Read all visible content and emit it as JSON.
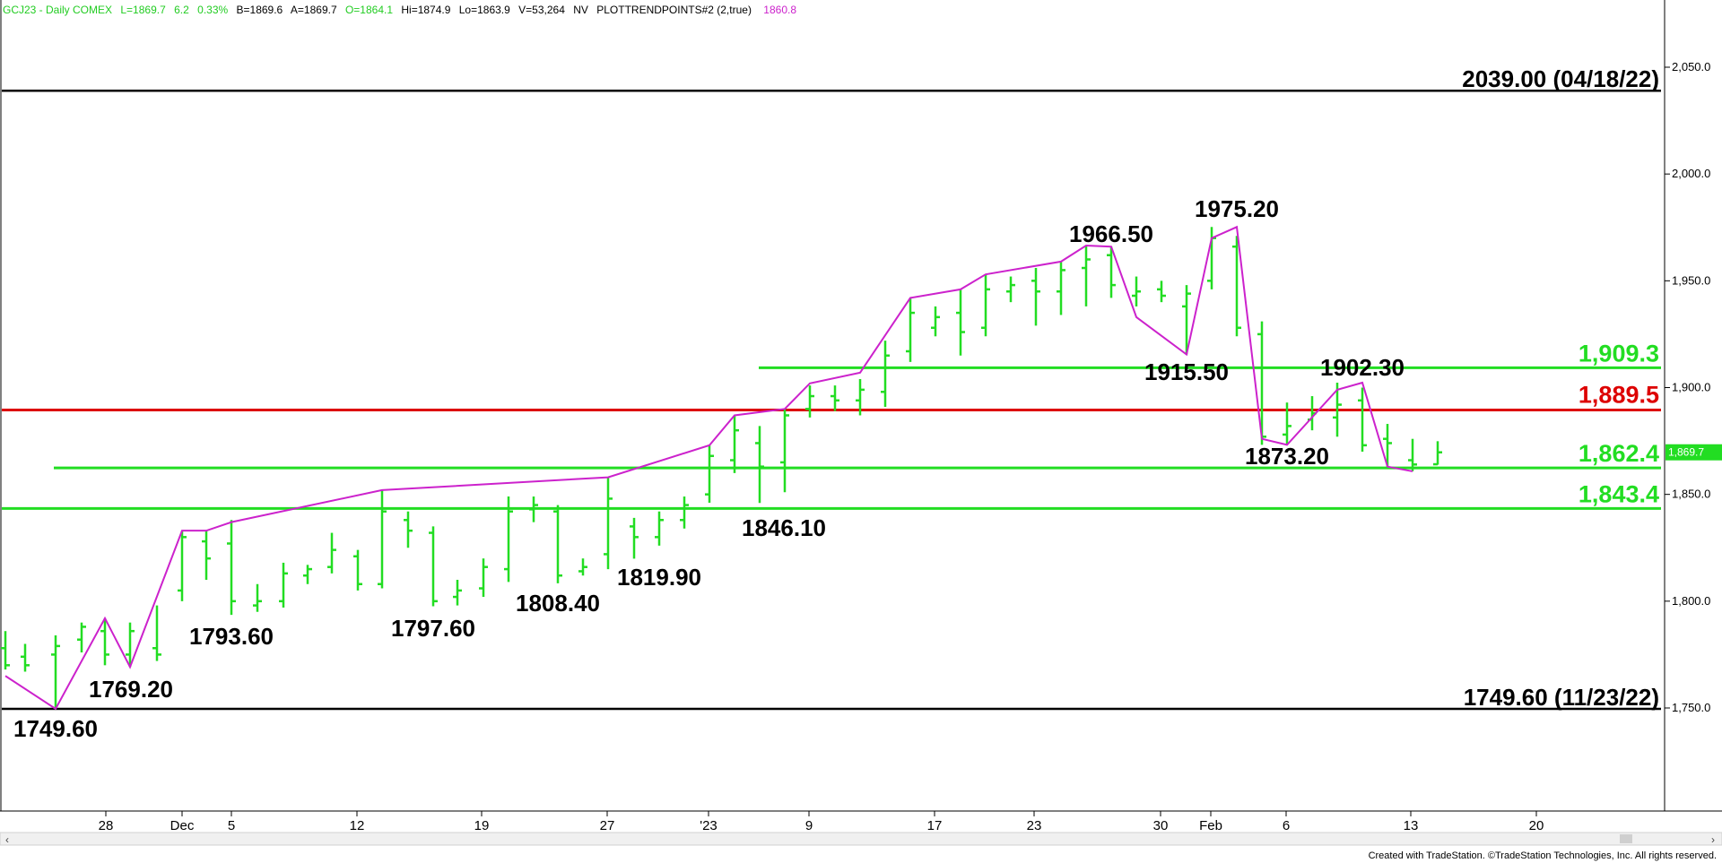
{
  "header": {
    "symbol": "GCJ23 - Daily  COMEX",
    "last": "L=1869.7",
    "change": "6.2",
    "pct": "0.33%",
    "bid": "B=1869.6",
    "ask": "A=1869.7",
    "open": "O=1864.1",
    "high": "Hi=1874.9",
    "low": "Lo=1863.9",
    "volume": "V=53,264",
    "nv": "NV",
    "study": "PLOTTRENDPOINTS#2 (2,true)",
    "study_value": "1860.8"
  },
  "footer": {
    "credit": "Created with TradeStation. ©TradeStation Technologies, Inc. All rights reserved."
  },
  "colors": {
    "bars": "#22dd22",
    "trend": "#cc22cc",
    "support": "#22dd22",
    "resistance": "#dd0000",
    "extreme": "#000000"
  },
  "chart_data": {
    "type": "bar",
    "ylim": [
      1700,
      2080
    ],
    "y_ticks": [
      "2,050.0",
      "2,000.0",
      "1,950.0",
      "1,900.0",
      "1,850.0",
      "1,800.0",
      "1,750.0"
    ],
    "x_ticks": [
      "28",
      "Dec",
      "5",
      "12",
      "19",
      "27",
      "'23",
      "9",
      "17",
      "23",
      "30",
      "Feb",
      "6",
      "13",
      "20"
    ],
    "last_price_label": "1,869.7",
    "last_price": 1869.7,
    "hlines": [
      {
        "label": "2039.00 (04/18/22)",
        "y": 2039.0,
        "color": "#000000"
      },
      {
        "label": "1,909.3",
        "y": 1909.3,
        "color": "#22dd22"
      },
      {
        "label": "1,889.5",
        "y": 1889.5,
        "color": "#dd0000"
      },
      {
        "label": "1,862.4",
        "y": 1862.4,
        "color": "#22dd22"
      },
      {
        "label": "1,843.4",
        "y": 1843.4,
        "color": "#22dd22"
      },
      {
        "label": "1749.60 (11/23/22)",
        "y": 1749.6,
        "color": "#000000"
      }
    ],
    "pivot_labels": [
      {
        "text": "1749.60",
        "bar": 2,
        "y": 1749.6,
        "pos": "below"
      },
      {
        "text": "1769.20",
        "bar": 5,
        "y": 1769.2,
        "pos": "below"
      },
      {
        "text": "1793.60",
        "bar": 9,
        "y": 1793.6,
        "pos": "below"
      },
      {
        "text": "1797.60",
        "bar": 17,
        "y": 1797.6,
        "pos": "below"
      },
      {
        "text": "1808.40",
        "bar": 22,
        "y": 1808.4,
        "pos": "below"
      },
      {
        "text": "1819.90",
        "bar": 26,
        "y": 1819.9,
        "pos": "below"
      },
      {
        "text": "1846.10",
        "bar": 31,
        "y": 1846.1,
        "pos": "below"
      },
      {
        "text": "1915.50",
        "bar": 46,
        "y": 1915.5,
        "pos": "below"
      },
      {
        "text": "1966.50",
        "bar": 43,
        "y": 1966.5,
        "pos": "above"
      },
      {
        "text": "1975.20",
        "bar": 48,
        "y": 1975.2,
        "pos": "above"
      },
      {
        "text": "1873.20",
        "bar": 50,
        "y": 1873.2,
        "pos": "below"
      },
      {
        "text": "1902.30",
        "bar": 53,
        "y": 1902.3,
        "pos": "above"
      }
    ],
    "bars": [
      {
        "h": 1786,
        "l": 1768,
        "o": 1778,
        "c": 1770
      },
      {
        "h": 1780,
        "l": 1767,
        "o": 1774,
        "c": 1770
      },
      {
        "h": 1784,
        "l": 1749.6,
        "o": 1775,
        "c": 1779
      },
      {
        "h": 1790,
        "l": 1776,
        "o": 1782,
        "c": 1788
      },
      {
        "h": 1792,
        "l": 1770,
        "o": 1786,
        "c": 1775
      },
      {
        "h": 1790,
        "l": 1769.2,
        "o": 1775,
        "c": 1786
      },
      {
        "h": 1798,
        "l": 1772,
        "o": 1778,
        "c": 1775
      },
      {
        "h": 1833,
        "l": 1800,
        "o": 1805,
        "c": 1830
      },
      {
        "h": 1833,
        "l": 1810,
        "o": 1828,
        "c": 1820
      },
      {
        "h": 1838,
        "l": 1793.6,
        "o": 1827,
        "c": 1800
      },
      {
        "h": 1808,
        "l": 1795,
        "o": 1798,
        "c": 1800
      },
      {
        "h": 1818,
        "l": 1797,
        "o": 1800,
        "c": 1813
      },
      {
        "h": 1817,
        "l": 1808,
        "o": 1812,
        "c": 1815
      },
      {
        "h": 1832,
        "l": 1813,
        "o": 1816,
        "c": 1824
      },
      {
        "h": 1824,
        "l": 1805,
        "o": 1821,
        "c": 1808
      },
      {
        "h": 1852,
        "l": 1806,
        "o": 1808,
        "c": 1842
      },
      {
        "h": 1842,
        "l": 1825,
        "o": 1838,
        "c": 1833
      },
      {
        "h": 1835,
        "l": 1797.6,
        "o": 1832,
        "c": 1800
      },
      {
        "h": 1810,
        "l": 1798,
        "o": 1802,
        "c": 1805
      },
      {
        "h": 1820,
        "l": 1802,
        "o": 1806,
        "c": 1816
      },
      {
        "h": 1849,
        "l": 1809,
        "o": 1815,
        "c": 1842
      },
      {
        "h": 1849,
        "l": 1837,
        "o": 1843,
        "c": 1845
      },
      {
        "h": 1845,
        "l": 1808.4,
        "o": 1842,
        "c": 1812
      },
      {
        "h": 1820,
        "l": 1812,
        "o": 1814,
        "c": 1816
      },
      {
        "h": 1858,
        "l": 1815,
        "o": 1822,
        "c": 1848
      },
      {
        "h": 1839,
        "l": 1819.9,
        "o": 1835,
        "c": 1830
      },
      {
        "h": 1842,
        "l": 1826,
        "o": 1830,
        "c": 1838
      },
      {
        "h": 1849,
        "l": 1834,
        "o": 1838,
        "c": 1845
      },
      {
        "h": 1873,
        "l": 1846.1,
        "o": 1850,
        "c": 1868
      },
      {
        "h": 1887,
        "l": 1860,
        "o": 1866,
        "c": 1880
      },
      {
        "h": 1882,
        "l": 1846,
        "o": 1874,
        "c": 1863
      },
      {
        "h": 1890,
        "l": 1851,
        "o": 1865,
        "c": 1887
      },
      {
        "h": 1901,
        "l": 1886,
        "o": 1890,
        "c": 1896
      },
      {
        "h": 1901,
        "l": 1889,
        "o": 1896,
        "c": 1894
      },
      {
        "h": 1904,
        "l": 1887,
        "o": 1894,
        "c": 1899
      },
      {
        "h": 1922,
        "l": 1891,
        "o": 1898,
        "c": 1915
      },
      {
        "h": 1942,
        "l": 1912,
        "o": 1917,
        "c": 1935
      },
      {
        "h": 1938,
        "l": 1924,
        "o": 1928,
        "c": 1933
      },
      {
        "h": 1946,
        "l": 1915,
        "o": 1935,
        "c": 1926
      },
      {
        "h": 1953,
        "l": 1924,
        "o": 1928,
        "c": 1946
      },
      {
        "h": 1952,
        "l": 1940,
        "o": 1945,
        "c": 1948
      },
      {
        "h": 1956,
        "l": 1929,
        "o": 1950,
        "c": 1945
      },
      {
        "h": 1959,
        "l": 1934,
        "o": 1945,
        "c": 1955
      },
      {
        "h": 1966.5,
        "l": 1938,
        "o": 1956,
        "c": 1960
      },
      {
        "h": 1966,
        "l": 1942,
        "o": 1962,
        "c": 1948
      },
      {
        "h": 1952,
        "l": 1938,
        "o": 1943,
        "c": 1945
      },
      {
        "h": 1950,
        "l": 1940,
        "o": 1946,
        "c": 1943
      },
      {
        "h": 1948,
        "l": 1915.5,
        "o": 1938,
        "c": 1944
      },
      {
        "h": 1975.2,
        "l": 1946,
        "o": 1950,
        "c": 1970
      },
      {
        "h": 1971,
        "l": 1924,
        "o": 1966,
        "c": 1928
      },
      {
        "h": 1931,
        "l": 1873.2,
        "o": 1925,
        "c": 1877
      },
      {
        "h": 1893,
        "l": 1873.2,
        "o": 1878,
        "c": 1882
      },
      {
        "h": 1896,
        "l": 1880,
        "o": 1885,
        "c": 1888
      },
      {
        "h": 1902.3,
        "l": 1877,
        "o": 1886,
        "c": 1892
      },
      {
        "h": 1900,
        "l": 1870,
        "o": 1894,
        "c": 1873
      },
      {
        "h": 1883,
        "l": 1862,
        "o": 1876,
        "c": 1874
      },
      {
        "h": 1876,
        "l": 1860.8,
        "o": 1866,
        "c": 1864
      },
      {
        "h": 1874.9,
        "l": 1863.9,
        "o": 1864.1,
        "c": 1869.7
      }
    ],
    "trend_points": [
      {
        "bar": 0,
        "y": 1765
      },
      {
        "bar": 2,
        "y": 1749.6
      },
      {
        "bar": 4,
        "y": 1792
      },
      {
        "bar": 5,
        "y": 1769.2
      },
      {
        "bar": 7,
        "y": 1833
      },
      {
        "bar": 8,
        "y": 1833
      },
      {
        "bar": 9,
        "y": 1837
      },
      {
        "bar": 15,
        "y": 1852
      },
      {
        "bar": 24,
        "y": 1858
      },
      {
        "bar": 28,
        "y": 1873
      },
      {
        "bar": 29,
        "y": 1887
      },
      {
        "bar": 31,
        "y": 1890
      },
      {
        "bar": 32,
        "y": 1902
      },
      {
        "bar": 34,
        "y": 1907
      },
      {
        "bar": 36,
        "y": 1942
      },
      {
        "bar": 38,
        "y": 1946
      },
      {
        "bar": 39,
        "y": 1953
      },
      {
        "bar": 42,
        "y": 1959
      },
      {
        "bar": 43,
        "y": 1966.5
      },
      {
        "bar": 44,
        "y": 1966
      },
      {
        "bar": 45,
        "y": 1933
      },
      {
        "bar": 47,
        "y": 1915.5
      },
      {
        "bar": 48,
        "y": 1970
      },
      {
        "bar": 49,
        "y": 1975.2
      },
      {
        "bar": 50,
        "y": 1876
      },
      {
        "bar": 51,
        "y": 1873.2
      },
      {
        "bar": 53,
        "y": 1899
      },
      {
        "bar": 54,
        "y": 1902.3
      },
      {
        "bar": 55,
        "y": 1863
      },
      {
        "bar": 56,
        "y": 1860.8
      }
    ]
  }
}
